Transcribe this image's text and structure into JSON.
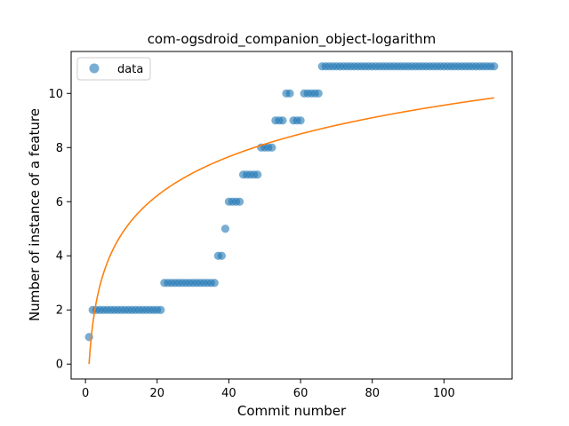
{
  "chart_data": {
    "type": "scatter",
    "title": "com-ogsdroid_companion_object-logarithm",
    "xlabel": "Commit number",
    "ylabel": "Number of instance of a feature",
    "xlim": [
      -4,
      119
    ],
    "ylim": [
      -0.55,
      11.55
    ],
    "xticks": [
      0,
      20,
      40,
      60,
      80,
      100
    ],
    "yticks": [
      0,
      2,
      4,
      6,
      8,
      10
    ],
    "grid": false,
    "legend": {
      "placement": "top-left",
      "entries": [
        "data"
      ]
    },
    "colors": {
      "scatter": "#1f77b4",
      "fit": "#ff7f0e"
    },
    "series": [
      {
        "name": "data",
        "kind": "scatter",
        "runs": [
          {
            "from": 1,
            "to": 1,
            "y": 1
          },
          {
            "from": 2,
            "to": 21,
            "y": 2
          },
          {
            "from": 22,
            "to": 36,
            "y": 3
          },
          {
            "from": 37,
            "to": 38,
            "y": 4
          },
          {
            "from": 39,
            "to": 39,
            "y": 5
          },
          {
            "from": 40,
            "to": 43,
            "y": 6
          },
          {
            "from": 44,
            "to": 48,
            "y": 7
          },
          {
            "from": 49,
            "to": 52,
            "y": 8
          },
          {
            "from": 53,
            "to": 55,
            "y": 9
          },
          {
            "from": 56,
            "to": 57,
            "y": 10
          },
          {
            "from": 58,
            "to": 60,
            "y": 9
          },
          {
            "from": 61,
            "to": 65,
            "y": 10
          },
          {
            "from": 66,
            "to": 114,
            "y": 11
          }
        ]
      },
      {
        "kind": "line",
        "x_range": [
          1,
          114
        ],
        "model": "logarithmic",
        "coefficients": {
          "a": 2.077,
          "b": 0
        }
      }
    ]
  }
}
